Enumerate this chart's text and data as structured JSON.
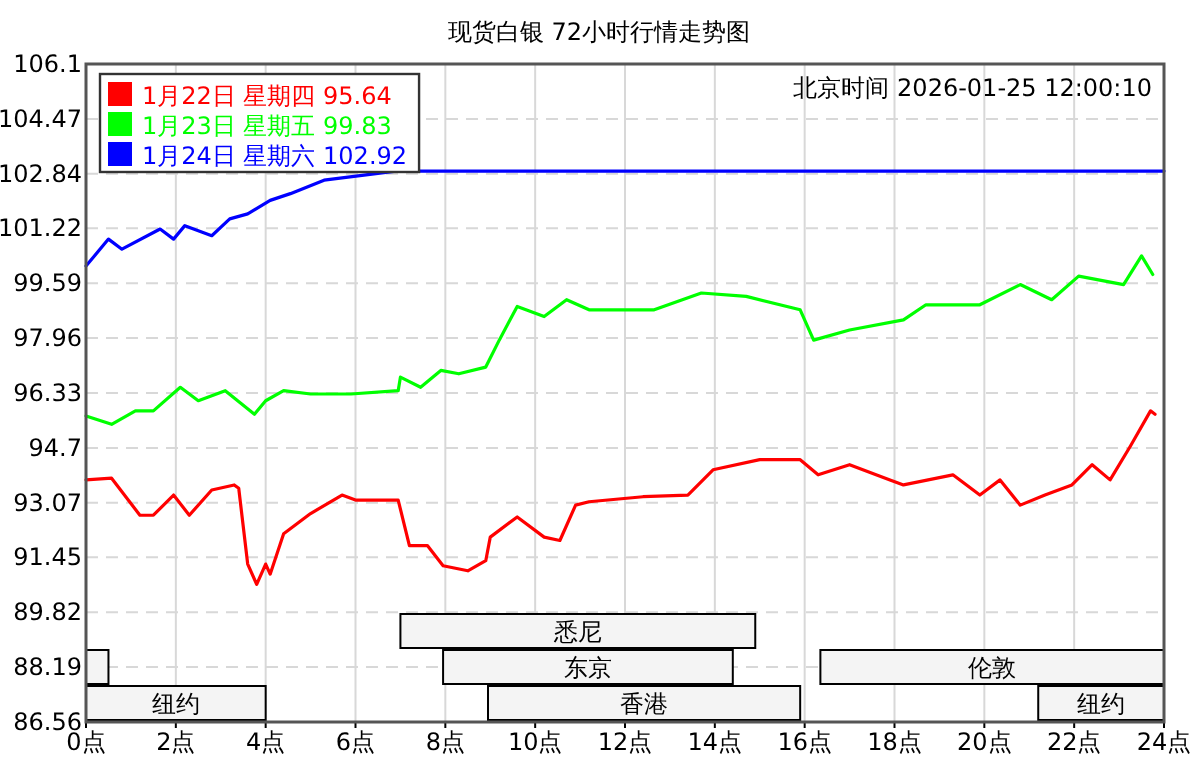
{
  "chart_data": {
    "type": "line",
    "title": "现货白银 72小时行情走势图",
    "annotations": [
      "北京时间 2026-01-25 12:00:10"
    ],
    "xlim": [
      0,
      24
    ],
    "xticks": [
      {
        "value": 0,
        "label": "0点"
      },
      {
        "value": 2,
        "label": "2点"
      },
      {
        "value": 4,
        "label": "4点"
      },
      {
        "value": 6,
        "label": "6点"
      },
      {
        "value": 8,
        "label": "8点"
      },
      {
        "value": 10,
        "label": "10点"
      },
      {
        "value": 12,
        "label": "12点"
      },
      {
        "value": 14,
        "label": "14点"
      },
      {
        "value": 16,
        "label": "16点"
      },
      {
        "value": 18,
        "label": "18点"
      },
      {
        "value": 20,
        "label": "20点"
      },
      {
        "value": 22,
        "label": "22点"
      },
      {
        "value": 24,
        "label": "24点"
      }
    ],
    "ylim": [
      86.56,
      106.1
    ],
    "yticks": [
      86.56,
      88.19,
      89.82,
      91.45,
      93.07,
      94.7,
      96.33,
      97.96,
      99.59,
      101.22,
      102.84,
      104.47,
      106.1
    ],
    "grid": true,
    "legend": "top left",
    "series": [
      {
        "name": "1月22日 星期四 95.64",
        "color": "#ff0000",
        "x": [
          0,
          0.57,
          1.2,
          1.5,
          1.95,
          2.3,
          2.8,
          3.3,
          3.4,
          3.6,
          3.8,
          4.0,
          4.1,
          4.4,
          5.0,
          5.7,
          6.0,
          6.95,
          7.2,
          7.6,
          7.95,
          8.5,
          8.9,
          9.0,
          9.6,
          10.2,
          10.55,
          10.9,
          11.2,
          12.4,
          13.4,
          13.96,
          15.0,
          15.9,
          16.3,
          17.0,
          17.9,
          18.2,
          19.3,
          19.9,
          20.35,
          20.8,
          21.35,
          21.95,
          22.4,
          22.8,
          23.25,
          23.7,
          23.8
        ],
        "values": [
          93.75,
          93.8,
          92.7,
          92.7,
          93.3,
          92.7,
          93.45,
          93.6,
          93.5,
          91.25,
          90.65,
          91.25,
          90.95,
          92.15,
          92.75,
          93.3,
          93.15,
          93.15,
          91.8,
          91.8,
          91.2,
          91.05,
          91.35,
          92.05,
          92.65,
          92.05,
          91.95,
          93.0,
          93.1,
          93.25,
          93.3,
          94.05,
          94.35,
          94.35,
          93.9,
          94.2,
          93.75,
          93.6,
          93.9,
          93.3,
          93.75,
          93.0,
          93.3,
          93.6,
          94.2,
          93.75,
          94.75,
          95.8,
          95.7
        ]
      },
      {
        "name": "1月23日 星期五 99.83",
        "color": "#00ff00",
        "x": [
          0,
          0.57,
          1.1,
          1.5,
          2.1,
          2.5,
          3.1,
          3.75,
          4.0,
          4.4,
          5.0,
          5.9,
          6.95,
          7.0,
          7.45,
          7.9,
          8.3,
          8.9,
          9.2,
          9.6,
          10.2,
          10.7,
          11.2,
          12.65,
          13.7,
          14.7,
          15.9,
          16.2,
          17.0,
          18.2,
          18.7,
          19.9,
          20.8,
          21.5,
          22.1,
          23.1,
          23.5,
          23.75
        ],
        "values": [
          95.65,
          95.4,
          95.8,
          95.8,
          96.5,
          96.1,
          96.4,
          95.7,
          96.1,
          96.4,
          96.3,
          96.3,
          96.4,
          96.8,
          96.5,
          97.0,
          96.9,
          97.1,
          97.9,
          98.9,
          98.6,
          99.1,
          98.8,
          98.8,
          99.3,
          99.2,
          98.8,
          97.9,
          98.2,
          98.5,
          98.95,
          98.95,
          99.55,
          99.1,
          99.8,
          99.55,
          100.4,
          99.85
        ]
      },
      {
        "name": "1月24日 星期六 102.92",
        "color": "#0000ff",
        "x": [
          0,
          0.5,
          0.8,
          1.65,
          1.95,
          2.2,
          2.8,
          3.2,
          3.6,
          4.1,
          4.55,
          5.3,
          6.9,
          24
        ],
        "values": [
          100.1,
          100.9,
          100.6,
          101.2,
          100.9,
          101.3,
          101.0,
          101.5,
          101.65,
          102.05,
          102.25,
          102.65,
          102.92,
          102.92
        ]
      }
    ],
    "bands": [
      {
        "axis": "x",
        "from": 0,
        "to": 4.0,
        "label": "纽约"
      },
      {
        "axis": "x",
        "from": 8.95,
        "to": 15.9,
        "label": "香港"
      },
      {
        "axis": "x",
        "from": 21.2,
        "to": 24,
        "label": "纽约"
      },
      {
        "axis": "x",
        "from": 0,
        "to": 0.5,
        "label": null
      },
      {
        "axis": "x",
        "from": 7.95,
        "to": 14.4,
        "label": "东京"
      },
      {
        "axis": "x",
        "from": 16.35,
        "to": 24,
        "label": "伦敦"
      },
      {
        "axis": "x",
        "from": 7.0,
        "to": 14.9,
        "label": "悉尼"
      }
    ]
  }
}
